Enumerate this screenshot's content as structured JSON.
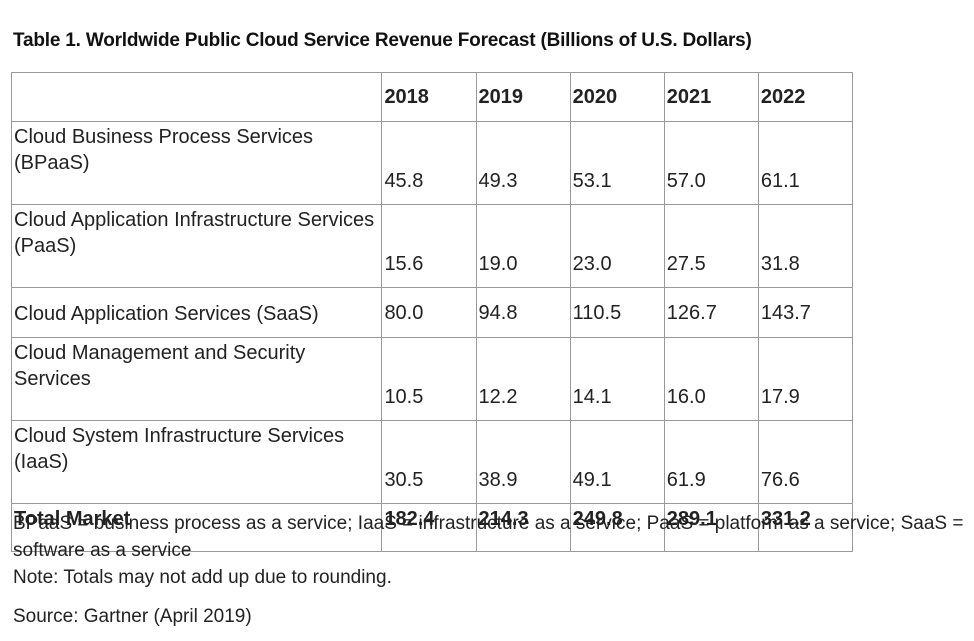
{
  "title": "Table 1. Worldwide Public Cloud Service Revenue Forecast (Billions of U.S. Dollars)",
  "table": {
    "header": [
      "",
      "2018",
      "2019",
      "2020",
      "2021",
      "2022"
    ],
    "rows": [
      {
        "label": "Cloud Business Process Services (BPaaS)",
        "values": [
          "45.8",
          "49.3",
          "53.1",
          "57.0",
          "61.1"
        ]
      },
      {
        "label": "Cloud Application Infrastructure Services (PaaS)",
        "values": [
          "15.6",
          "19.0",
          "23.0",
          "27.5",
          "31.8"
        ]
      },
      {
        "label": "Cloud Application Services (SaaS)",
        "values": [
          "80.0",
          "94.8",
          "110.5",
          "126.7",
          "143.7"
        ]
      },
      {
        "label": "Cloud Management and Security Services",
        "values": [
          "10.5",
          "12.2",
          "14.1",
          "16.0",
          "17.9"
        ]
      },
      {
        "label": "Cloud System Infrastructure Services (IaaS)",
        "values": [
          "30.5",
          "38.9",
          "49.1",
          "61.9",
          "76.6"
        ]
      }
    ],
    "total": {
      "label": "Total Market",
      "values": [
        "182.4",
        "214.3",
        "249.8",
        "289.1",
        "331.2"
      ]
    }
  },
  "notes": {
    "abbreviations": "BPaaS = business process as a service; IaaS = infrastructure as a service; PaaS = platform as a service; SaaS = software as a service",
    "rounding": "Note: Totals may not add up due to rounding.",
    "source": "Source: Gartner (April 2019)"
  }
}
